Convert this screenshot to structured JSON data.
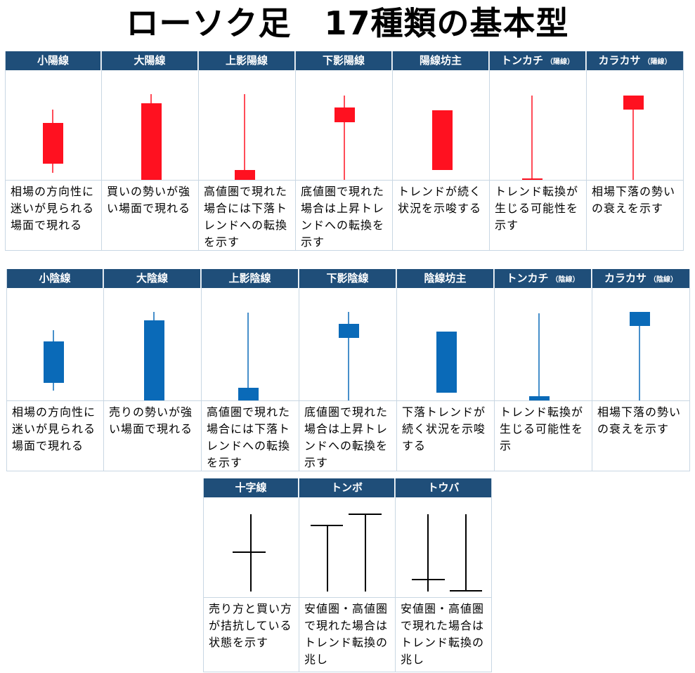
{
  "title": "ローソク足　17種類の基本型",
  "colors": {
    "header": "#1f4e79",
    "bull": "#ff1120",
    "bear": "#0a6ab8",
    "cross": "#000000"
  },
  "rows": [
    {
      "cells": [
        {
          "name": "小陽線",
          "sub": "",
          "desc": "相場の方向性に迷いが見られる場面で現れる"
        },
        {
          "name": "大陽線",
          "sub": "",
          "desc": "買いの勢いが強い場面で現れる"
        },
        {
          "name": "上影陽線",
          "sub": "",
          "desc": "高値圏で現れた場合には下落トレンドへの転換を示す"
        },
        {
          "name": "下影陽線",
          "sub": "",
          "desc": "底値圏で現れた場合は上昇トレンドへの転換を示す"
        },
        {
          "name": "陽線坊主",
          "sub": "",
          "desc": "トレンドが続く状況を示唆する"
        },
        {
          "name": "トンカチ",
          "sub": "（陽線）",
          "desc": "トレンド転換が生じる可能性を示す"
        },
        {
          "name": "カラカサ",
          "sub": "（陽線）",
          "desc": "相場下落の勢いの衰えを示す"
        }
      ]
    },
    {
      "cells": [
        {
          "name": "小陰線",
          "sub": "",
          "desc": "相場の方向性に迷いが見られる場面で現れる"
        },
        {
          "name": "大陰線",
          "sub": "",
          "desc": "売りの勢いが強い場面で現れる"
        },
        {
          "name": "上影陰線",
          "sub": "",
          "desc": "高値圏で現れた場合には下落トレンドへの転換を示す"
        },
        {
          "name": "下影陰線",
          "sub": "",
          "desc": "底値圏で現れた場合は上昇トレンドへの転換を示す"
        },
        {
          "name": "陰線坊主",
          "sub": "",
          "desc": "下落トレンドが続く状況を示唆する"
        },
        {
          "name": "トンカチ",
          "sub": "（陰線）",
          "desc": "トレンド転換が生じる可能性を示"
        },
        {
          "name": "カラカサ",
          "sub": "（陰線）",
          "desc": "相場下落の勢いの衰えを示す"
        }
      ]
    },
    {
      "cells": [
        {
          "name": "十字線",
          "sub": "",
          "desc": "売り方と買い方が拮抗している状態を示す"
        },
        {
          "name": "トンボ",
          "sub": "",
          "desc": "安値圏・高値圏で現れた場合はトレンド転換の兆し"
        },
        {
          "name": "トウバ",
          "sub": "",
          "desc": "安値圏・高値圏で現れた場合はトレンド転換の兆し"
        }
      ]
    }
  ]
}
